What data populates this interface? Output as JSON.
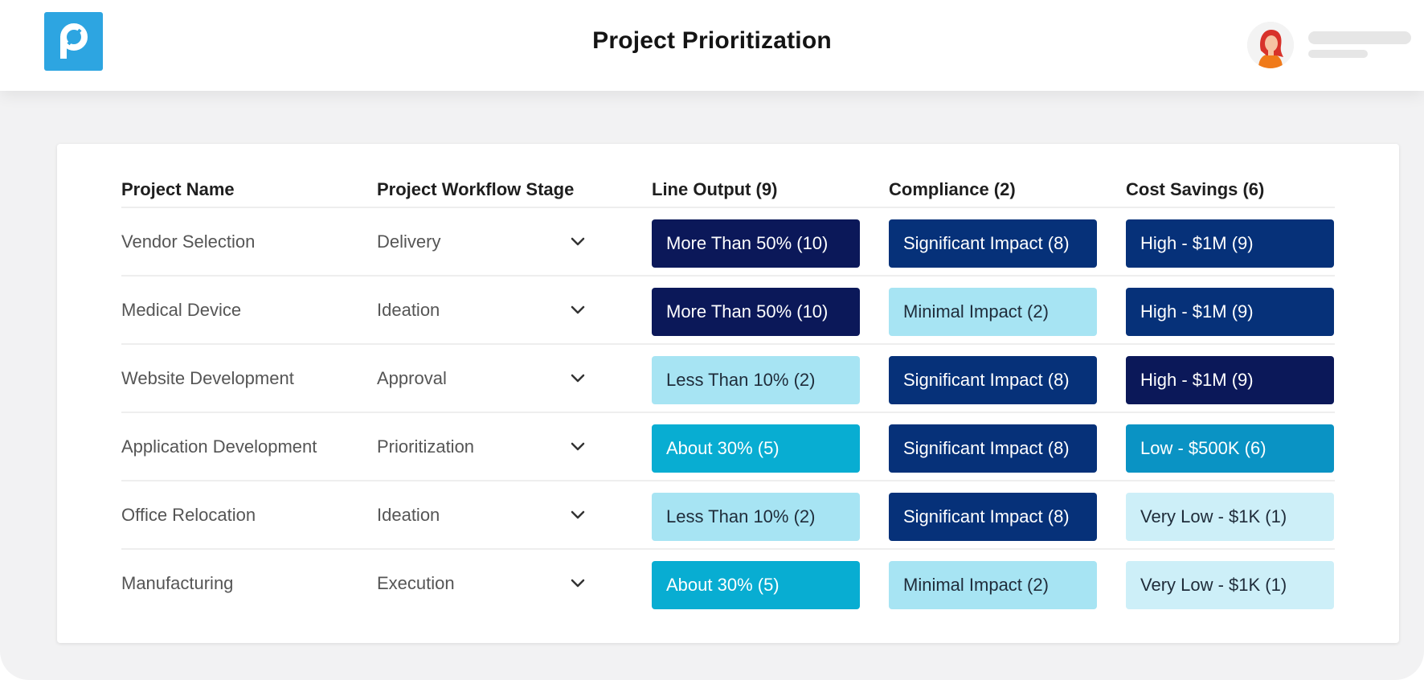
{
  "header": {
    "title": "Project Prioritization",
    "logo_icon": "p-logo-icon",
    "avatar_icon": "user-avatar-icon",
    "brand_color": "#2da5e1"
  },
  "table": {
    "columns": {
      "name": "Project Name",
      "stage": "Project Workflow Stage",
      "line_output": "Line Output (9)",
      "compliance": "Compliance (2)",
      "cost_savings": "Cost Savings (6)"
    },
    "rows": [
      {
        "name": "Vendor Selection",
        "stage": "Delivery",
        "line_output": "More Than 50% (10)",
        "compliance": "Significant Impact (8)",
        "cost_savings": "High - $1M (9)"
      },
      {
        "name": "Medical Device",
        "stage": "Ideation",
        "line_output": "More Than 50% (10)",
        "compliance": "Minimal Impact (2)",
        "cost_savings": "High - $1M (9)"
      },
      {
        "name": "Website Development",
        "stage": "Approval",
        "line_output": "Less Than 10% (2)",
        "compliance": "Significant Impact (8)",
        "cost_savings": "High - $1M (9)"
      },
      {
        "name": "Application Development",
        "stage": "Prioritization",
        "line_output": "About 30% (5)",
        "compliance": "Significant Impact (8)",
        "cost_savings": "Low - $500K (6)"
      },
      {
        "name": "Office Relocation",
        "stage": "Ideation",
        "line_output": "Less Than 10% (2)",
        "compliance": "Significant Impact (8)",
        "cost_savings": "Very Low - $1K (1)"
      },
      {
        "name": "Manufacturing",
        "stage": "Execution",
        "line_output": "About 30% (5)",
        "compliance": "Minimal Impact (2)",
        "cost_savings": "Very Low - $1K (1)"
      }
    ]
  },
  "level_colors": {
    "navy": "#0b1859",
    "dark_blue": "#063179",
    "teal": "#08add2",
    "mid_teal": "#0a93c4",
    "light": "#a7e4f3",
    "pale": "#cdeff8"
  }
}
